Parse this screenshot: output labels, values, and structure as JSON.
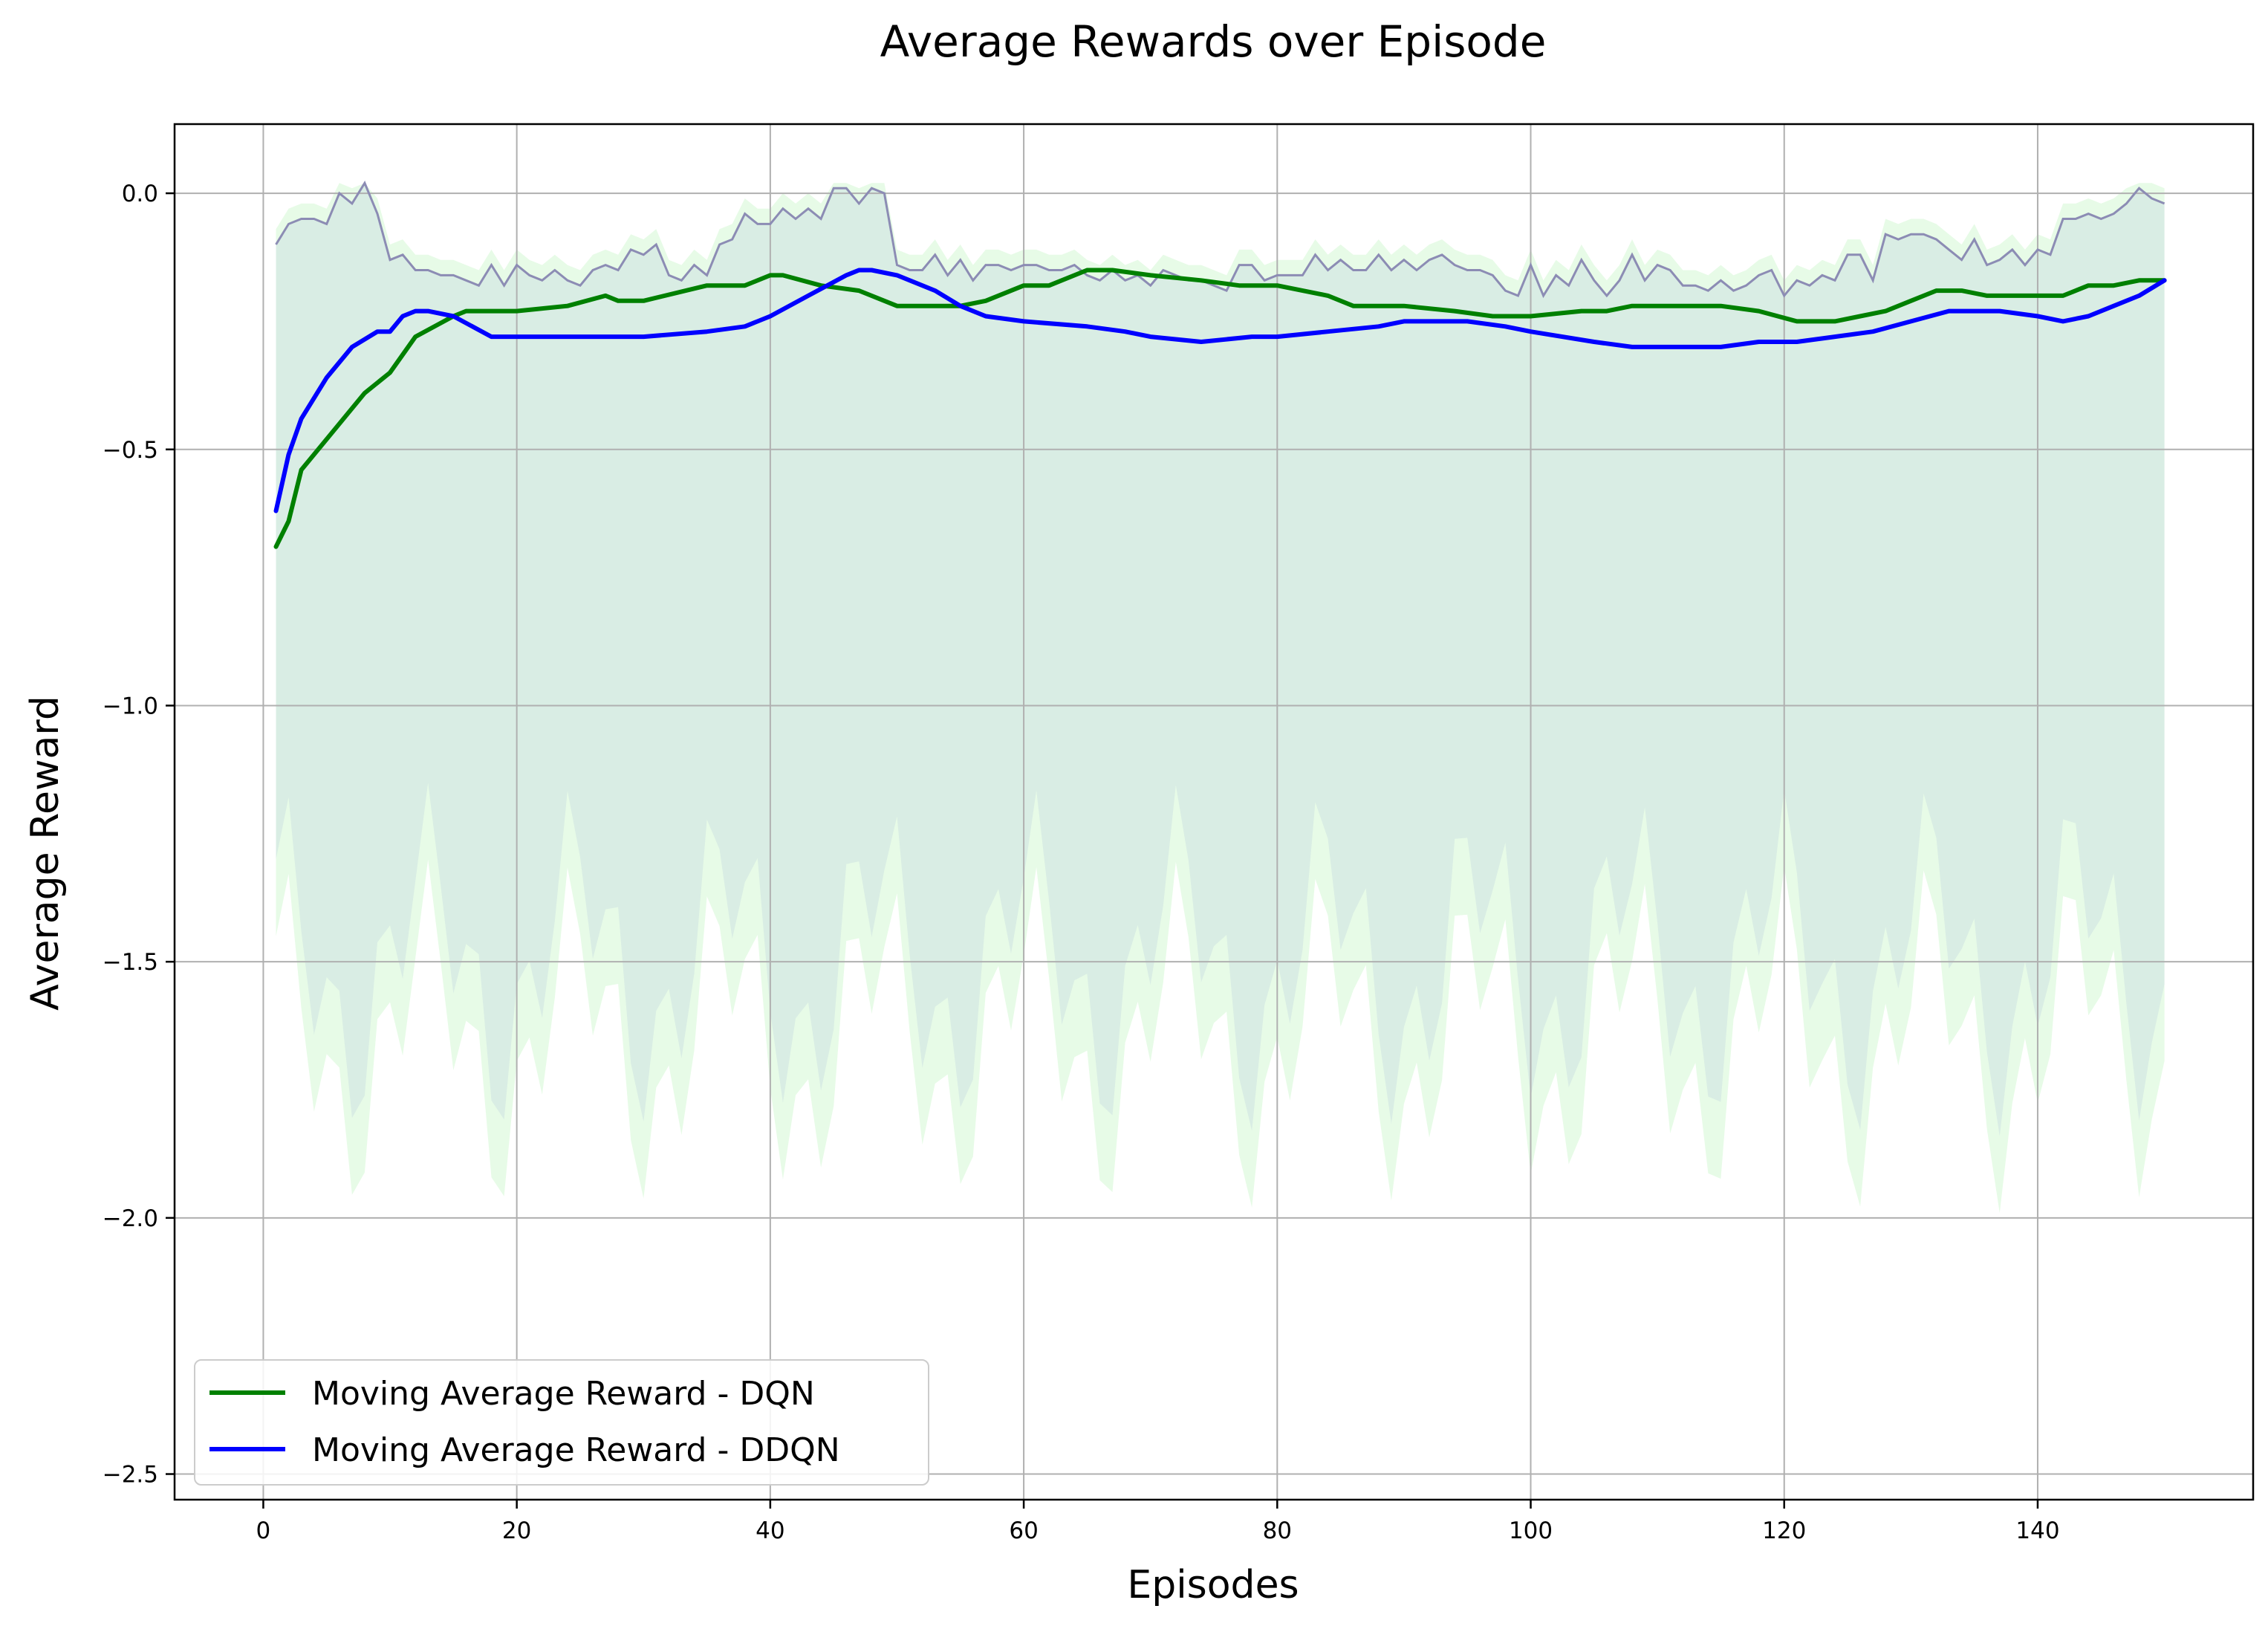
{
  "chart_data": {
    "type": "line",
    "title": "Average Rewards over Episode",
    "xlabel": "Episodes",
    "ylabel": "Average Reward",
    "xlim": [
      -7,
      157
    ],
    "ylim": [
      -2.55,
      0.135
    ],
    "xticks": [
      0,
      20,
      40,
      60,
      80,
      100,
      120,
      140
    ],
    "xtick_labels": [
      "0",
      "20",
      "40",
      "60",
      "80",
      "100",
      "120",
      "140"
    ],
    "yticks": [
      0.0,
      -0.5,
      -1.0,
      -1.5,
      -2.0,
      -2.5
    ],
    "ytick_labels": [
      "0.0",
      "−0.5",
      "−1.0",
      "−1.5",
      "−2.0",
      "−2.5"
    ],
    "grid": true,
    "legend_position": "lower-left",
    "colors": {
      "dqn_line": "#008000",
      "ddqn_line": "#0000ff",
      "dqn_band": "#90ee90",
      "ddqn_band": "#e6e6fa",
      "ddqn_raw": "#8c8cb4"
    },
    "series": [
      {
        "name": "Moving Average Reward - DQN",
        "x": [
          1,
          2,
          3,
          5,
          8,
          10,
          12,
          15,
          16,
          20,
          24,
          27,
          28,
          30,
          35,
          38,
          40,
          41,
          44,
          47,
          50,
          52,
          55,
          57,
          60,
          62,
          65,
          67,
          70,
          74,
          77,
          80,
          84,
          86,
          88,
          90,
          94,
          97,
          100,
          104,
          106,
          108,
          110,
          112,
          115,
          118,
          121,
          124,
          126,
          128,
          130,
          132,
          134,
          136,
          138,
          140,
          142,
          144,
          146,
          148,
          150
        ],
        "values": [
          -0.69,
          -0.64,
          -0.54,
          -0.48,
          -0.39,
          -0.35,
          -0.28,
          -0.24,
          -0.23,
          -0.23,
          -0.22,
          -0.2,
          -0.21,
          -0.21,
          -0.18,
          -0.18,
          -0.16,
          -0.16,
          -0.18,
          -0.19,
          -0.22,
          -0.22,
          -0.22,
          -0.21,
          -0.18,
          -0.18,
          -0.15,
          -0.15,
          -0.16,
          -0.17,
          -0.18,
          -0.18,
          -0.2,
          -0.22,
          -0.22,
          -0.22,
          -0.23,
          -0.24,
          -0.24,
          -0.23,
          -0.23,
          -0.22,
          -0.22,
          -0.22,
          -0.22,
          -0.23,
          -0.25,
          -0.25,
          -0.24,
          -0.23,
          -0.21,
          -0.19,
          -0.19,
          -0.2,
          -0.2,
          -0.2,
          -0.2,
          -0.18,
          -0.18,
          -0.17,
          -0.17
        ]
      },
      {
        "name": "Moving Average Reward - DDQN",
        "x": [
          1,
          2,
          3,
          5,
          7,
          9,
          10,
          11,
          12,
          13,
          15,
          18,
          20,
          25,
          30,
          35,
          38,
          40,
          43,
          46,
          47,
          48,
          50,
          53,
          55,
          57,
          60,
          65,
          68,
          70,
          74,
          78,
          80,
          84,
          88,
          90,
          95,
          98,
          100,
          105,
          108,
          112,
          115,
          118,
          121,
          124,
          127,
          130,
          133,
          135,
          137,
          140,
          142,
          144,
          146,
          148,
          150
        ],
        "values": [
          -0.62,
          -0.51,
          -0.44,
          -0.36,
          -0.3,
          -0.27,
          -0.27,
          -0.24,
          -0.23,
          -0.23,
          -0.24,
          -0.28,
          -0.28,
          -0.28,
          -0.28,
          -0.27,
          -0.26,
          -0.24,
          -0.2,
          -0.16,
          -0.15,
          -0.15,
          -0.16,
          -0.19,
          -0.22,
          -0.24,
          -0.25,
          -0.26,
          -0.27,
          -0.28,
          -0.29,
          -0.28,
          -0.28,
          -0.27,
          -0.26,
          -0.25,
          -0.25,
          -0.26,
          -0.27,
          -0.29,
          -0.3,
          -0.3,
          -0.3,
          -0.29,
          -0.29,
          -0.28,
          -0.27,
          -0.25,
          -0.23,
          -0.23,
          -0.23,
          -0.24,
          -0.25,
          -0.24,
          -0.22,
          -0.2,
          -0.17
        ]
      }
    ],
    "ddqn_raw_band": {
      "x": [
        1,
        2,
        3,
        4,
        5,
        6,
        7,
        8,
        9,
        10,
        11,
        12,
        13,
        14,
        15,
        16,
        17,
        18,
        19,
        20,
        21,
        22,
        23,
        24,
        25,
        26,
        27,
        28,
        29,
        30,
        31,
        32,
        33,
        34,
        35,
        36,
        37,
        38,
        39,
        40,
        41,
        42,
        43,
        44,
        45,
        46,
        47,
        48,
        49,
        50,
        51,
        52,
        53,
        54,
        55,
        56,
        57,
        58,
        59,
        60,
        61,
        62,
        63,
        64,
        65,
        66,
        67,
        68,
        69,
        70,
        71,
        72,
        73,
        74,
        75,
        76,
        77,
        78,
        79,
        80,
        81,
        82,
        83,
        84,
        85,
        86,
        87,
        88,
        89,
        90,
        91,
        92,
        93,
        94,
        95,
        96,
        97,
        98,
        99,
        100,
        101,
        102,
        103,
        104,
        105,
        106,
        107,
        108,
        109,
        110,
        111,
        112,
        113,
        114,
        115,
        116,
        117,
        118,
        119,
        120,
        121,
        122,
        123,
        124,
        125,
        126,
        127,
        128,
        129,
        130,
        131,
        132,
        133,
        134,
        135,
        136,
        137,
        138,
        139,
        140,
        141,
        142,
        143,
        144,
        145,
        146,
        147,
        148,
        149,
        150
      ],
      "upper": [
        -0.1,
        -0.06,
        -0.05,
        -0.05,
        -0.06,
        0.0,
        -0.02,
        0.02,
        -0.04,
        -0.13,
        -0.12,
        -0.15,
        -0.15,
        -0.16,
        -0.16,
        -0.17,
        -0.18,
        -0.14,
        -0.18,
        -0.14,
        -0.16,
        -0.17,
        -0.15,
        -0.17,
        -0.18,
        -0.15,
        -0.14,
        -0.15,
        -0.11,
        -0.12,
        -0.1,
        -0.16,
        -0.17,
        -0.14,
        -0.16,
        -0.1,
        -0.09,
        -0.04,
        -0.06,
        -0.06,
        -0.03,
        -0.05,
        -0.03,
        -0.05,
        0.01,
        0.01,
        -0.02,
        0.01,
        0.0,
        -0.14,
        -0.15,
        -0.15,
        -0.12,
        -0.16,
        -0.13,
        -0.17,
        -0.14,
        -0.14,
        -0.15,
        -0.14,
        -0.14,
        -0.15,
        -0.15,
        -0.14,
        -0.16,
        -0.17,
        -0.15,
        -0.17,
        -0.16,
        -0.18,
        -0.15,
        -0.16,
        -0.17,
        -0.17,
        -0.18,
        -0.19,
        -0.14,
        -0.14,
        -0.17,
        -0.16,
        -0.16,
        -0.16,
        -0.12,
        -0.15,
        -0.13,
        -0.15,
        -0.15,
        -0.12,
        -0.15,
        -0.13,
        -0.15,
        -0.13,
        -0.12,
        -0.14,
        -0.15,
        -0.15,
        -0.16,
        -0.19,
        -0.2,
        -0.14,
        -0.2,
        -0.16,
        -0.18,
        -0.13,
        -0.17,
        -0.2,
        -0.17,
        -0.12,
        -0.17,
        -0.14,
        -0.15,
        -0.18,
        -0.18,
        -0.19,
        -0.17,
        -0.19,
        -0.18,
        -0.16,
        -0.15,
        -0.2,
        -0.17,
        -0.18,
        -0.16,
        -0.17,
        -0.12,
        -0.12,
        -0.17,
        -0.08,
        -0.09,
        -0.08,
        -0.08,
        -0.09,
        -0.11,
        -0.13,
        -0.09,
        -0.14,
        -0.13,
        -0.11,
        -0.14,
        -0.11,
        -0.12,
        -0.05,
        -0.05,
        -0.04,
        -0.05,
        -0.04,
        -0.02,
        0.01,
        -0.01,
        -0.02
      ]
    }
  }
}
